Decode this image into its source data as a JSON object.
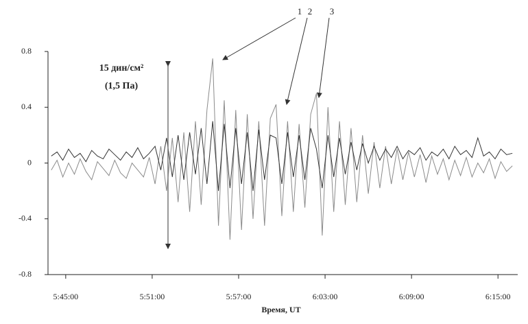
{
  "chart_data": {
    "type": "line",
    "x_label": "Время, UT",
    "annotations": [
      "15 дин/см²",
      "(1,5 Па)",
      "1",
      "2",
      "3"
    ],
    "xlim": [
      343.77,
      376.37
    ],
    "xticks": [
      {
        "value": 345,
        "label": "5:45:00"
      },
      {
        "value": 351,
        "label": "5:51:00"
      },
      {
        "value": 357,
        "label": "5:57:00"
      },
      {
        "value": 363,
        "label": "6:03:00"
      },
      {
        "value": 369,
        "label": "6:09:00"
      },
      {
        "value": 375,
        "label": "6:15:00"
      }
    ],
    "ylim": [
      -0.8,
      0.8
    ],
    "yticks": [
      0.8,
      0.4,
      0,
      -0.4,
      -0.8
    ],
    "x": [
      344.0,
      344.4,
      344.8,
      345.2,
      345.6,
      346.0,
      346.4,
      346.8,
      347.2,
      347.6,
      348.0,
      348.4,
      348.8,
      349.2,
      349.6,
      350.0,
      350.4,
      350.8,
      351.2,
      351.6,
      352.0,
      352.4,
      352.8,
      353.2,
      353.6,
      354.0,
      354.4,
      354.8,
      355.2,
      355.6,
      356.0,
      356.4,
      356.8,
      357.2,
      357.6,
      358.0,
      358.4,
      358.8,
      359.2,
      359.6,
      360.0,
      360.4,
      360.8,
      361.2,
      361.6,
      362.0,
      362.4,
      362.8,
      363.2,
      363.6,
      364.0,
      364.4,
      364.8,
      365.2,
      365.6,
      366.0,
      366.4,
      366.8,
      367.2,
      367.6,
      368.0,
      368.4,
      368.8,
      369.2,
      369.6,
      370.0,
      370.4,
      370.8,
      371.2,
      371.6,
      372.0,
      372.4,
      372.8,
      373.2,
      373.6,
      374.0,
      374.4,
      374.8,
      375.2,
      375.6,
      376.0
    ],
    "series": [
      {
        "color": "#8a8a8a",
        "values": [
          -0.05,
          0.02,
          -0.1,
          0.0,
          -0.08,
          0.03,
          -0.06,
          -0.12,
          0.01,
          -0.04,
          -0.09,
          0.02,
          -0.07,
          -0.11,
          0.0,
          -0.05,
          -0.1,
          0.04,
          -0.15,
          0.12,
          -0.2,
          0.18,
          -0.28,
          0.22,
          -0.35,
          0.3,
          -0.3,
          0.38,
          0.75,
          -0.45,
          0.45,
          -0.55,
          0.38,
          -0.48,
          0.35,
          -0.4,
          0.3,
          -0.45,
          0.32,
          0.42,
          -0.38,
          0.3,
          -0.35,
          0.28,
          -0.32,
          0.35,
          0.5,
          -0.52,
          0.4,
          -0.35,
          0.3,
          -0.3,
          0.25,
          -0.28,
          0.2,
          -0.22,
          0.15,
          -0.18,
          0.12,
          -0.15,
          0.1,
          -0.12,
          0.08,
          -0.1,
          0.06,
          -0.14,
          0.05,
          -0.08,
          0.03,
          -0.12,
          0.02,
          -0.09,
          0.04,
          -0.1,
          0.0,
          -0.07,
          0.03,
          -0.11,
          0.01,
          -0.06,
          -0.02
        ]
      },
      {
        "color": "#333333",
        "values": [
          0.05,
          0.08,
          0.02,
          0.1,
          0.04,
          0.07,
          0.01,
          0.09,
          0.05,
          0.03,
          0.1,
          0.06,
          0.02,
          0.08,
          0.04,
          0.11,
          0.03,
          0.07,
          0.12,
          -0.05,
          0.18,
          -0.1,
          0.2,
          -0.12,
          0.22,
          -0.08,
          0.25,
          -0.15,
          0.3,
          -0.2,
          0.28,
          -0.18,
          0.25,
          -0.15,
          0.22,
          -0.2,
          0.24,
          -0.12,
          0.2,
          0.18,
          -0.15,
          0.22,
          -0.1,
          0.2,
          -0.12,
          0.25,
          0.1,
          -0.18,
          0.2,
          -0.1,
          0.18,
          -0.08,
          0.15,
          -0.05,
          0.14,
          0.0,
          0.12,
          0.02,
          0.1,
          0.04,
          0.12,
          0.03,
          0.09,
          0.06,
          0.11,
          0.02,
          0.08,
          0.05,
          0.1,
          0.03,
          0.12,
          0.06,
          0.09,
          0.04,
          0.18,
          0.05,
          0.08,
          0.03,
          0.1,
          0.06,
          0.07
        ]
      }
    ]
  }
}
